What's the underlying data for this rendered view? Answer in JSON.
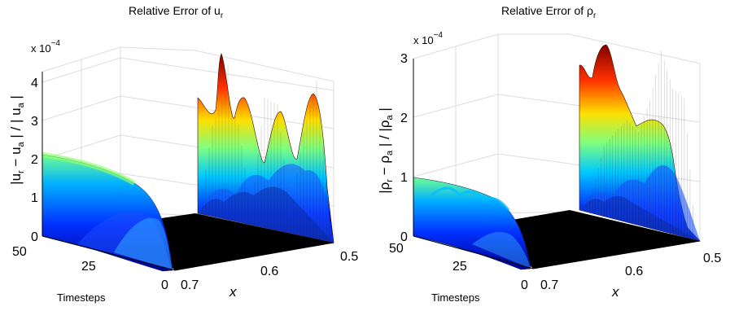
{
  "chart_data": [
    {
      "type": "surface",
      "title": "Relative Error of  u",
      "title_sub": "r",
      "zlabel": "|u  − u  | / | u  |",
      "zlabel_parts": [
        "|u",
        "r",
        " − u",
        "a",
        " | / | u",
        "a",
        " |"
      ],
      "zscale": "x 10",
      "zscale_exp": "−4",
      "z_ticks": [
        "0",
        "1",
        "2",
        "3",
        "4"
      ],
      "zlim": [
        0,
        4.5
      ],
      "x_label": "x",
      "x_ticks": [
        "0.5",
        "0.6",
        "0.7"
      ],
      "xlim": [
        0.5,
        0.7
      ],
      "t_label": "Timesteps",
      "t_ticks": [
        "0",
        "25",
        "50"
      ],
      "tlim": [
        0,
        50
      ],
      "colormap": "jet",
      "back_ridge": {
        "x": [
          0.5,
          0.52,
          0.54,
          0.56,
          0.58,
          0.6,
          0.62,
          0.64,
          0.66,
          0.68,
          0.7
        ],
        "peak": [
          0.0,
          2.5,
          3.5,
          2.7,
          0.4,
          3.6,
          3.5,
          0.5,
          2.9,
          4.4,
          0.9
        ]
      },
      "front_ridge": {
        "t": [
          0,
          10,
          20,
          30,
          40,
          50
        ],
        "z": [
          0.05,
          0.6,
          1.1,
          1.5,
          1.75,
          1.9
        ]
      }
    },
    {
      "type": "surface",
      "title": "Relative Error of ρ",
      "title_sub": "r",
      "zlabel": "|ρ  − ρ  | / |ρ  |",
      "zlabel_parts": [
        "|ρ",
        "r",
        " − ρ",
        "a",
        " | / |ρ",
        "a",
        " |"
      ],
      "zscale": "x 10",
      "zscale_exp": "−4",
      "z_ticks": [
        "0",
        "1",
        "2",
        "3"
      ],
      "zlim": [
        0,
        3
      ],
      "x_label": "x",
      "x_ticks": [
        "0.5",
        "0.6",
        "0.7"
      ],
      "xlim": [
        0.5,
        0.7
      ],
      "t_label": "Timesteps",
      "t_ticks": [
        "0",
        "25",
        "50"
      ],
      "tlim": [
        0,
        50
      ],
      "colormap": "jet",
      "back_ridge": {
        "x": [
          0.5,
          0.52,
          0.54,
          0.56,
          0.58,
          0.6,
          0.62,
          0.64,
          0.66,
          0.68,
          0.7
        ],
        "peak": [
          0.0,
          0.4,
          1.2,
          1.5,
          1.75,
          1.6,
          2.2,
          3.1,
          2.5,
          2.4,
          0.0
        ]
      },
      "front_ridge": {
        "t": [
          0,
          10,
          20,
          30,
          40,
          50
        ],
        "z": [
          0.05,
          0.4,
          0.6,
          0.75,
          0.85,
          0.95
        ]
      }
    }
  ]
}
